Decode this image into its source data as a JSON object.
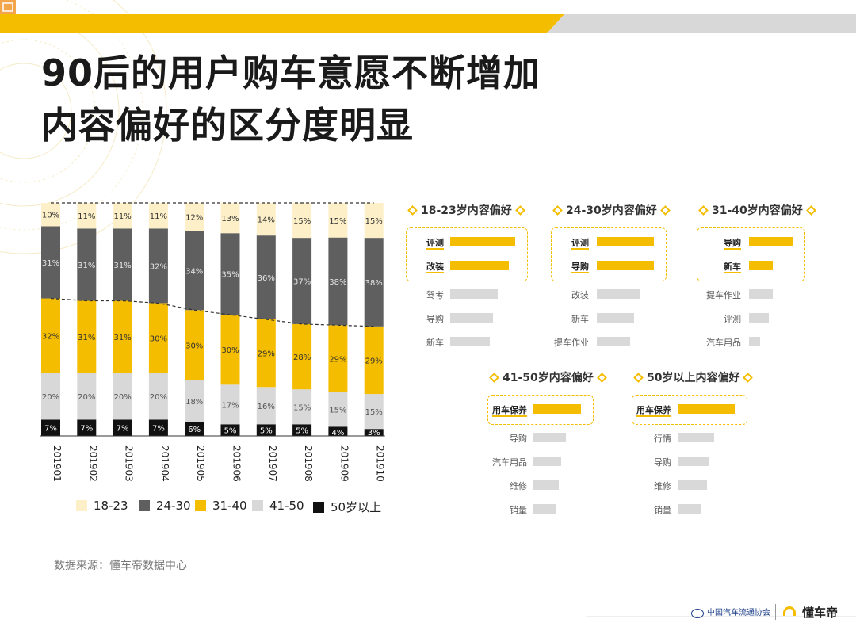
{
  "slide": {
    "title_line1": "90后的用户购车意愿不断增加",
    "title_line2": "内容偏好的区分度明显",
    "source": "数据来源：懂车帝数据中心",
    "footer_org": "中国汽车流通协会",
    "footer_brand": "懂车帝"
  },
  "colors": {
    "accent": "#f5bd00",
    "bar_gray": "#d9d9d9",
    "seg_18_23": "#fdf0c8",
    "seg_24_30": "#5f5f5f",
    "seg_31_40": "#f5bd00",
    "seg_41_50": "#d9d8d8",
    "seg_50plus": "#111111"
  },
  "chart_data": {
    "type": "bar",
    "stacked": true,
    "percent": true,
    "categories": [
      "201901",
      "201902",
      "201903",
      "201904",
      "201905",
      "201906",
      "201907",
      "201908",
      "201909",
      "201910"
    ],
    "series": [
      {
        "name": "50岁以上",
        "values": [
          7,
          7,
          7,
          7,
          6,
          5,
          5,
          5,
          4,
          3
        ],
        "labels": [
          "7%",
          "7%",
          "7%",
          "7%",
          "6%",
          "5%",
          "5%",
          "5%",
          "4%",
          "3%"
        ]
      },
      {
        "name": "41-50",
        "values": [
          20,
          20,
          20,
          20,
          18,
          17,
          16,
          15,
          15,
          15
        ],
        "labels": [
          "20%",
          "20%",
          "20%",
          "20%",
          "18%",
          "17%",
          "16%",
          "15%",
          "15%",
          "15%"
        ]
      },
      {
        "name": "31-40",
        "values": [
          32,
          31,
          31,
          30,
          30,
          30,
          29,
          28,
          29,
          29
        ],
        "labels": [
          "32%",
          "31%",
          "31%",
          "30%",
          "30%",
          "30%",
          "29%",
          "28%",
          "29%",
          "29%"
        ]
      },
      {
        "name": "24-30",
        "values": [
          31,
          31,
          31,
          32,
          34,
          35,
          36,
          37,
          38,
          38
        ],
        "labels": [
          "31%",
          "31%",
          "31%",
          "32%",
          "34%",
          "35%",
          "36%",
          "37%",
          "38%",
          "38%"
        ]
      },
      {
        "name": "18-23",
        "values": [
          10,
          11,
          11,
          11,
          12,
          13,
          14,
          15,
          15,
          15
        ],
        "labels": [
          "10%",
          "11%",
          "11%",
          "11%",
          "12%",
          "13%",
          "14%",
          "15%",
          "15%",
          "15%"
        ]
      }
    ],
    "legend": [
      "18-23",
      "24-30",
      "31-40",
      "41-50",
      "50岁以上"
    ],
    "ylim": [
      0,
      100
    ],
    "xlabel": "",
    "ylabel": ""
  },
  "preferences": {
    "p1": {
      "title": "18-23岁内容偏好",
      "items": [
        {
          "label": "评测",
          "value": 100,
          "hl": true
        },
        {
          "label": "改装",
          "value": 90,
          "hl": true
        },
        {
          "label": "驾考",
          "value": 73,
          "hl": false
        },
        {
          "label": "导购",
          "value": 66,
          "hl": false
        },
        {
          "label": "新车",
          "value": 61,
          "hl": false
        }
      ]
    },
    "p2": {
      "title": "24-30岁内容偏好",
      "items": [
        {
          "label": "评测",
          "value": 100,
          "hl": true
        },
        {
          "label": "导购",
          "value": 100,
          "hl": true
        },
        {
          "label": "改装",
          "value": 76,
          "hl": false
        },
        {
          "label": "新车",
          "value": 65,
          "hl": false
        },
        {
          "label": "提车作业",
          "value": 58,
          "hl": false
        }
      ]
    },
    "p3": {
      "title": "31-40岁内容偏好",
      "items": [
        {
          "label": "导购",
          "value": 100,
          "hl": true
        },
        {
          "label": "新车",
          "value": 55,
          "hl": true
        },
        {
          "label": "提车作业",
          "value": 55,
          "hl": false
        },
        {
          "label": "评测",
          "value": 45,
          "hl": false
        },
        {
          "label": "汽车用品",
          "value": 25,
          "hl": false
        }
      ]
    },
    "p4": {
      "title": "41-50岁内容偏好",
      "items": [
        {
          "label": "用车保养",
          "value": 100,
          "hl": true
        },
        {
          "label": "导购",
          "value": 68,
          "hl": false
        },
        {
          "label": "汽车用品",
          "value": 58,
          "hl": false
        },
        {
          "label": "维修",
          "value": 53,
          "hl": false
        },
        {
          "label": "销量",
          "value": 49,
          "hl": false
        }
      ]
    },
    "p5": {
      "title": "50岁以上内容偏好",
      "items": [
        {
          "label": "用车保养",
          "value": 100,
          "hl": true
        },
        {
          "label": "行情",
          "value": 64,
          "hl": false
        },
        {
          "label": "导购",
          "value": 56,
          "hl": false
        },
        {
          "label": "维修",
          "value": 51,
          "hl": false
        },
        {
          "label": "销量",
          "value": 41,
          "hl": false
        }
      ]
    }
  }
}
